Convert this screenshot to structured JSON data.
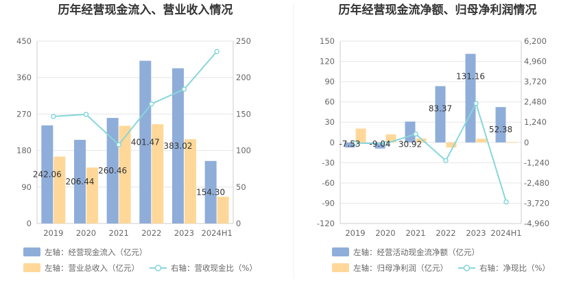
{
  "chart_data": [
    {
      "type": "bar",
      "title": "历年经营现金流入、营业收入情况",
      "categories": [
        "2019",
        "2020",
        "2021",
        "2022",
        "2023",
        "2024H1"
      ],
      "series": [
        {
          "name": "左轴：经营现金流入（亿元）",
          "axis": "left",
          "kind": "bar",
          "color": "#8fadd9",
          "values": [
            242.06,
            206.44,
            260.46,
            401.47,
            383.02,
            154.3
          ],
          "labels": [
            "242.06",
            "206.44",
            "260.46",
            "401.47",
            "383.02",
            "154.30"
          ]
        },
        {
          "name": "左轴：营业总收入（亿元）",
          "axis": "left",
          "kind": "bar",
          "color": "#ffd899",
          "values": [
            165,
            138,
            241,
            245,
            208,
            66
          ]
        },
        {
          "name": "右轴：营收现金比（%）",
          "axis": "right",
          "kind": "line",
          "color": "#86d6da",
          "values": [
            146.7,
            149.6,
            108.0,
            163.9,
            184.1,
            235.8
          ]
        }
      ],
      "y_left": {
        "min": 0,
        "max": 450,
        "ticks": [
          "0",
          "90",
          "180",
          "270",
          "360",
          "450"
        ]
      },
      "y_right": {
        "min": 0,
        "max": 250,
        "ticks": [
          "0",
          "50",
          "100",
          "150",
          "200",
          "250"
        ]
      }
    },
    {
      "type": "bar",
      "title": "历年经营现金流净额、归母净利润情况",
      "categories": [
        "2019",
        "2020",
        "2021",
        "2022",
        "2023",
        "2024H1"
      ],
      "series": [
        {
          "name": "左轴：经营活动现金流净额（亿元）",
          "axis": "left",
          "kind": "bar",
          "color": "#8fadd9",
          "values": [
            -7.53,
            -9.04,
            30.92,
            83.37,
            131.16,
            52.38
          ],
          "labels": [
            "-7.53",
            "-9.04",
            "30.92",
            "83.37",
            "131.16",
            "52.38"
          ]
        },
        {
          "name": "左轴：归母净利润（亿元）",
          "axis": "left",
          "kind": "bar",
          "color": "#ffd899",
          "values": [
            20.5,
            12,
            6,
            -7.5,
            5.5,
            0.6
          ]
        },
        {
          "name": "右轴：净现比（%）",
          "axis": "right",
          "kind": "line",
          "color": "#86d6da",
          "values": [
            -37,
            -75,
            515,
            -1112,
            2385,
            -3640
          ]
        }
      ],
      "y_left": {
        "min": -120,
        "max": 150,
        "ticks": [
          "-120",
          "-90",
          "-60",
          "-30",
          "0",
          "30",
          "60",
          "90",
          "120",
          "150"
        ]
      },
      "y_right": {
        "min": -4960,
        "max": 6200,
        "ticks": [
          "-4,960",
          "-3,720",
          "-2,480",
          "-1,240",
          "0",
          "1,240",
          "2,480",
          "3,720",
          "4,960",
          "6,200"
        ]
      }
    }
  ]
}
